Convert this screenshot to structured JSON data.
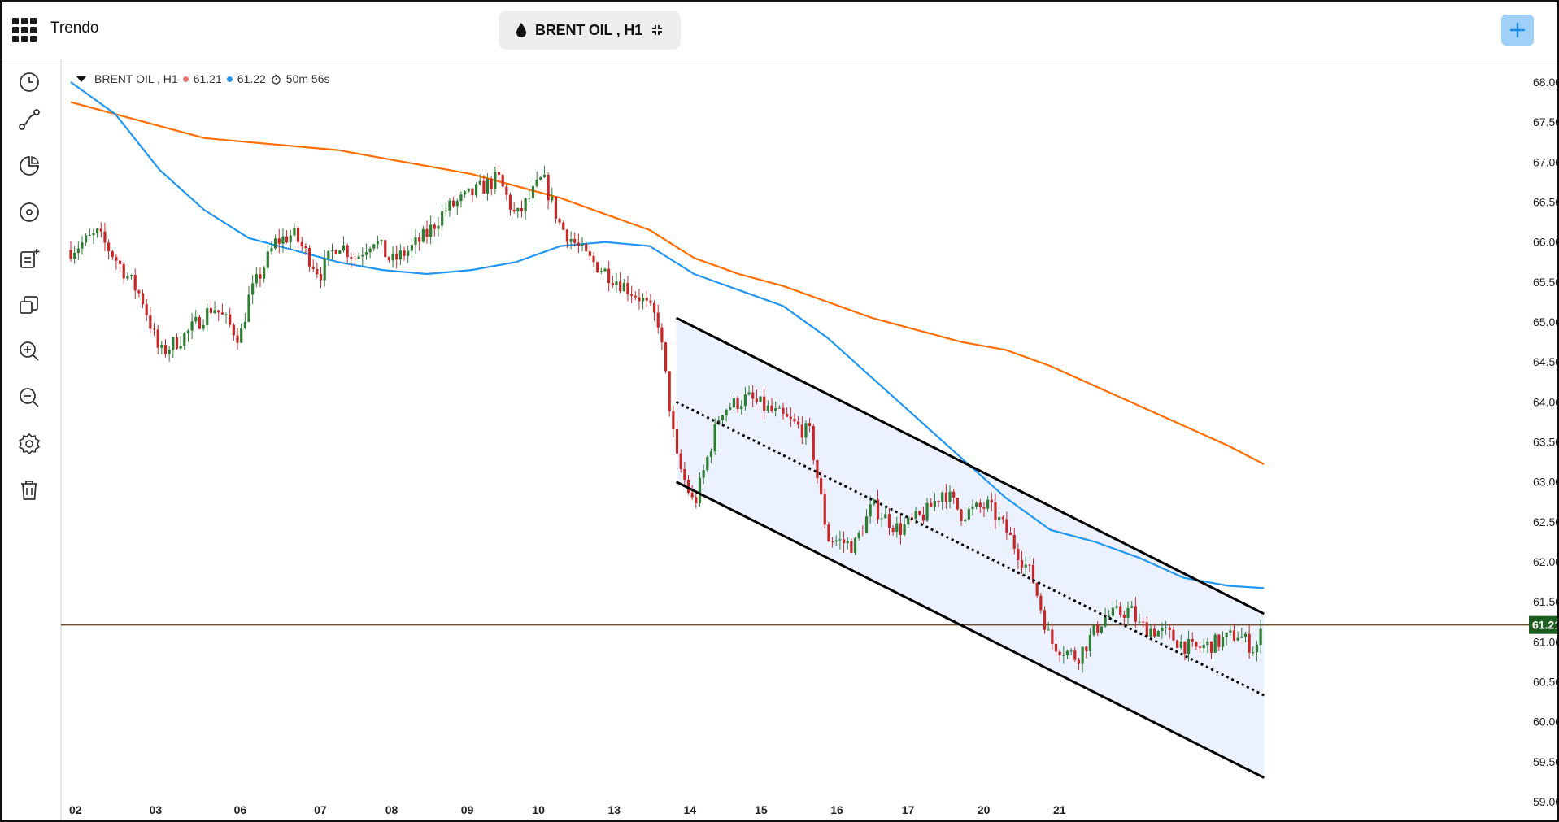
{
  "app": {
    "title": "Trendo"
  },
  "symbol": {
    "label": "BRENT OIL , H1"
  },
  "legend": {
    "label": "BRENT OIL , H1",
    "bid": "61.21",
    "ask": "61.22",
    "timer": "50m 56s"
  },
  "toolbar": {
    "tools": [
      {
        "name": "clock-icon"
      },
      {
        "name": "draw-line-icon"
      },
      {
        "name": "pie-chart-icon"
      },
      {
        "name": "target-icon"
      },
      {
        "name": "add-note-icon"
      },
      {
        "name": "copy-icon"
      },
      {
        "name": "zoom-in-icon"
      },
      {
        "name": "zoom-out-icon"
      },
      {
        "name": "settings-icon"
      },
      {
        "name": "trash-icon"
      }
    ]
  },
  "colors": {
    "bull": "#2e7d32",
    "bear": "#c62828",
    "ma_fast": "#2196f3",
    "ma_slow": "#ff6d00",
    "price_line": "#6d4c2f",
    "channel_fill": "#e8efff",
    "price_tag": "#1b5e20"
  },
  "chart_data": {
    "type": "candlestick",
    "symbol": "BRENT OIL",
    "timeframe": "H1",
    "current_price": "61.21",
    "y_ticks": [
      "68.00",
      "67.50",
      "67.00",
      "66.50",
      "66.00",
      "65.50",
      "65.00",
      "64.50",
      "64.00",
      "63.50",
      "63.00",
      "62.50",
      "62.00",
      "61.50",
      "61.00",
      "60.50",
      "60.00",
      "59.50",
      "59.00"
    ],
    "ylim": [
      59.0,
      68.0
    ],
    "x_ticks": [
      "02",
      "03",
      "06",
      "07",
      "08",
      "09",
      "10",
      "13",
      "14",
      "15",
      "16",
      "17",
      "20",
      "21"
    ],
    "close_path": [
      [
        0,
        65.9
      ],
      [
        0.3,
        66.1
      ],
      [
        0.5,
        65.8
      ],
      [
        0.8,
        65.3
      ],
      [
        1.0,
        64.6
      ],
      [
        1.3,
        64.85
      ],
      [
        1.6,
        65.2
      ],
      [
        1.9,
        64.8
      ],
      [
        2.0,
        65.3
      ],
      [
        2.3,
        66.0
      ],
      [
        2.5,
        66.1
      ],
      [
        2.8,
        65.6
      ],
      [
        3.0,
        66.0
      ],
      [
        3.2,
        65.8
      ],
      [
        3.4,
        66.05
      ],
      [
        3.6,
        65.75
      ],
      [
        3.8,
        65.9
      ],
      [
        4.0,
        66.1
      ],
      [
        4.2,
        66.4
      ],
      [
        4.5,
        66.6
      ],
      [
        4.8,
        66.8
      ],
      [
        5.0,
        66.3
      ],
      [
        5.3,
        66.8
      ],
      [
        5.5,
        66.2
      ],
      [
        5.8,
        65.8
      ],
      [
        6.1,
        65.55
      ],
      [
        6.4,
        65.3
      ],
      [
        6.6,
        65.0
      ],
      [
        6.8,
        63.3
      ],
      [
        7.0,
        62.7
      ],
      [
        7.3,
        63.9
      ],
      [
        7.6,
        64.05
      ],
      [
        8.0,
        63.8
      ],
      [
        8.3,
        63.6
      ],
      [
        8.5,
        62.3
      ],
      [
        8.8,
        62.2
      ],
      [
        9.0,
        62.7
      ],
      [
        9.3,
        62.4
      ],
      [
        9.6,
        62.6
      ],
      [
        9.8,
        62.9
      ],
      [
        10.0,
        62.6
      ],
      [
        10.3,
        62.7
      ],
      [
        10.5,
        62.4
      ],
      [
        10.8,
        61.8
      ],
      [
        11.0,
        61.0
      ],
      [
        11.3,
        60.8
      ],
      [
        11.6,
        61.3
      ],
      [
        11.9,
        61.4
      ],
      [
        12.0,
        61.2
      ],
      [
        12.3,
        61.1
      ],
      [
        12.6,
        60.9
      ],
      [
        12.9,
        61.0
      ],
      [
        13.1,
        61.1
      ],
      [
        13.3,
        60.9
      ],
      [
        13.4,
        61.21
      ]
    ],
    "ma_fast": [
      [
        0,
        68.0
      ],
      [
        0.5,
        67.6
      ],
      [
        1.0,
        66.9
      ],
      [
        1.5,
        66.4
      ],
      [
        2.0,
        66.05
      ],
      [
        2.5,
        65.9
      ],
      [
        3.0,
        65.75
      ],
      [
        3.5,
        65.65
      ],
      [
        4.0,
        65.6
      ],
      [
        4.5,
        65.65
      ],
      [
        5.0,
        65.75
      ],
      [
        5.5,
        65.95
      ],
      [
        6.0,
        66.0
      ],
      [
        6.5,
        65.95
      ],
      [
        7.0,
        65.6
      ],
      [
        7.5,
        65.4
      ],
      [
        8.0,
        65.2
      ],
      [
        8.5,
        64.8
      ],
      [
        9.0,
        64.3
      ],
      [
        9.5,
        63.8
      ],
      [
        10.0,
        63.3
      ],
      [
        10.5,
        62.8
      ],
      [
        11.0,
        62.4
      ],
      [
        11.5,
        62.25
      ],
      [
        12.0,
        62.05
      ],
      [
        12.5,
        61.8
      ],
      [
        13.0,
        61.7
      ],
      [
        13.4,
        61.67
      ]
    ],
    "ma_slow": [
      [
        0,
        67.75
      ],
      [
        0.5,
        67.6
      ],
      [
        1.0,
        67.45
      ],
      [
        1.5,
        67.3
      ],
      [
        2.0,
        67.25
      ],
      [
        2.5,
        67.2
      ],
      [
        3.0,
        67.15
      ],
      [
        3.5,
        67.05
      ],
      [
        4.0,
        66.95
      ],
      [
        4.5,
        66.85
      ],
      [
        5.0,
        66.7
      ],
      [
        5.5,
        66.55
      ],
      [
        6.0,
        66.35
      ],
      [
        6.5,
        66.15
      ],
      [
        7.0,
        65.8
      ],
      [
        7.5,
        65.6
      ],
      [
        8.0,
        65.45
      ],
      [
        8.5,
        65.25
      ],
      [
        9.0,
        65.05
      ],
      [
        9.5,
        64.9
      ],
      [
        10.0,
        64.75
      ],
      [
        10.5,
        64.65
      ],
      [
        11.0,
        64.45
      ],
      [
        11.5,
        64.2
      ],
      [
        12.0,
        63.95
      ],
      [
        12.5,
        63.7
      ],
      [
        13.0,
        63.45
      ],
      [
        13.4,
        63.22
      ]
    ],
    "channel": {
      "upper": [
        [
          6.8,
          65.05
        ],
        [
          13.4,
          61.35
        ]
      ],
      "middle": [
        [
          6.8,
          64.0
        ],
        [
          13.4,
          60.33
        ]
      ],
      "lower": [
        [
          6.8,
          63.0
        ],
        [
          13.4,
          59.3
        ]
      ]
    }
  }
}
